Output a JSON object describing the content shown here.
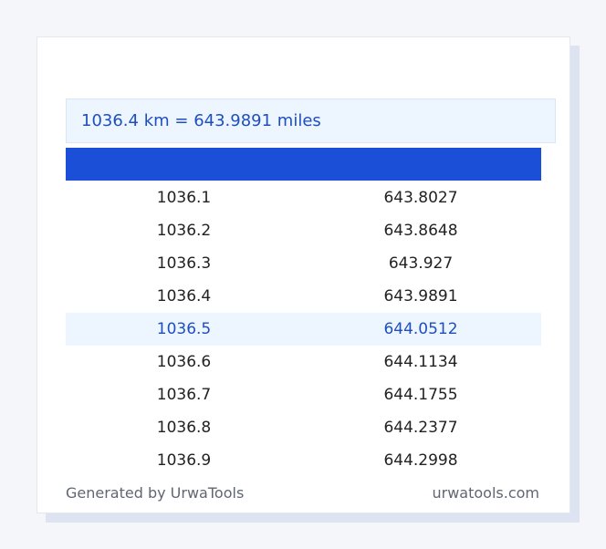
{
  "result": {
    "text": "1036.4 km = 643.9891 miles"
  },
  "colors": {
    "accent": "#1c4fd8",
    "highlight_bg": "#edf5fe",
    "highlight_text": "#1f4fbf"
  },
  "table": {
    "rows": [
      {
        "km": "1036.1",
        "miles": "643.8027",
        "highlighted": false
      },
      {
        "km": "1036.2",
        "miles": "643.8648",
        "highlighted": false
      },
      {
        "km": "1036.3",
        "miles": "643.927",
        "highlighted": false
      },
      {
        "km": "1036.4",
        "miles": "643.9891",
        "highlighted": false
      },
      {
        "km": "1036.5",
        "miles": "644.0512",
        "highlighted": true
      },
      {
        "km": "1036.6",
        "miles": "644.1134",
        "highlighted": false
      },
      {
        "km": "1036.7",
        "miles": "644.1755",
        "highlighted": false
      },
      {
        "km": "1036.8",
        "miles": "644.2377",
        "highlighted": false
      },
      {
        "km": "1036.9",
        "miles": "644.2998",
        "highlighted": false
      }
    ]
  },
  "footer": {
    "generated_by": "Generated by UrwaTools",
    "site": "urwatools.com"
  }
}
